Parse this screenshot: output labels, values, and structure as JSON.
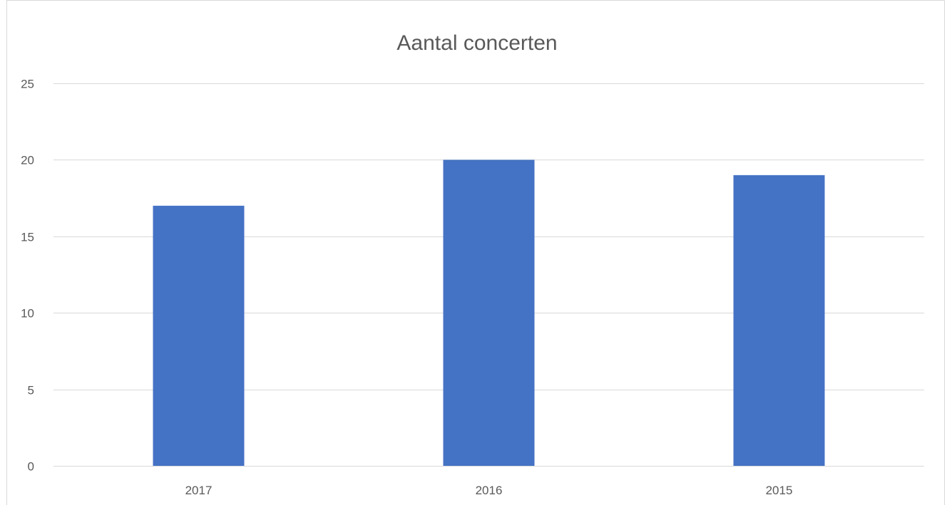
{
  "chart_data": {
    "type": "bar",
    "title": "Aantal concerten",
    "xlabel": "",
    "ylabel": "",
    "categories": [
      "2017",
      "2016",
      "2015"
    ],
    "values": [
      17,
      20,
      19
    ],
    "ylim": [
      0,
      25
    ],
    "yticks": [
      "0",
      "5",
      "10",
      "15",
      "20",
      "25"
    ],
    "grid": true,
    "legend": "none",
    "bar_color": "#4472C4",
    "grid_color": "#D9D9D9",
    "border_color": "#D9D9D9"
  }
}
